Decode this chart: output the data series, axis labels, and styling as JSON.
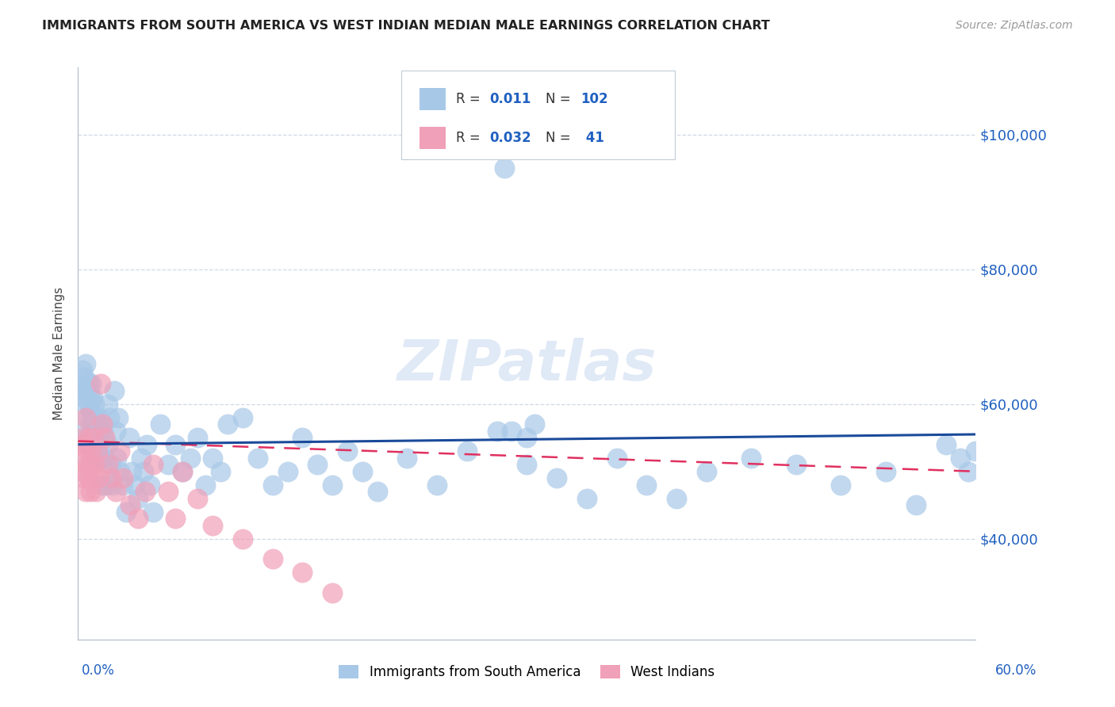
{
  "title": "IMMIGRANTS FROM SOUTH AMERICA VS WEST INDIAN MEDIAN MALE EARNINGS CORRELATION CHART",
  "source": "Source: ZipAtlas.com",
  "ylabel": "Median Male Earnings",
  "color_blue": "#a8c8e8",
  "color_pink": "#f0a0b8",
  "color_blue_line": "#1a4a9a",
  "color_pink_line": "#e03060",
  "color_blue_text": "#2060c0",
  "ytick_labels": [
    "$40,000",
    "$60,000",
    "$80,000",
    "$100,000"
  ],
  "ytick_vals": [
    40000,
    60000,
    80000,
    100000
  ],
  "xlim": [
    0.0,
    0.6
  ],
  "ylim": [
    25000,
    110000
  ],
  "grid_color": "#d0d8e8",
  "spine_color": "#b0b8c8",
  "legend_box_color": "#e8eef8",
  "legend_box_edge": "#c0ccd8",
  "sa_x": [
    0.002,
    0.003,
    0.003,
    0.004,
    0.004,
    0.005,
    0.005,
    0.005,
    0.006,
    0.006,
    0.006,
    0.007,
    0.007,
    0.007,
    0.008,
    0.008,
    0.008,
    0.009,
    0.009,
    0.01,
    0.01,
    0.01,
    0.011,
    0.011,
    0.012,
    0.012,
    0.013,
    0.013,
    0.014,
    0.014,
    0.015,
    0.015,
    0.016,
    0.016,
    0.017,
    0.018,
    0.019,
    0.02,
    0.02,
    0.021,
    0.022,
    0.023,
    0.024,
    0.025,
    0.026,
    0.027,
    0.028,
    0.03,
    0.032,
    0.034,
    0.036,
    0.038,
    0.04,
    0.042,
    0.044,
    0.046,
    0.048,
    0.05,
    0.055,
    0.06,
    0.065,
    0.07,
    0.075,
    0.08,
    0.085,
    0.09,
    0.095,
    0.1,
    0.11,
    0.12,
    0.13,
    0.14,
    0.15,
    0.16,
    0.17,
    0.18,
    0.19,
    0.2,
    0.22,
    0.24,
    0.26,
    0.28,
    0.3,
    0.32,
    0.34,
    0.36,
    0.38,
    0.4,
    0.42,
    0.45,
    0.48,
    0.51,
    0.54,
    0.56,
    0.58,
    0.59,
    0.595,
    0.6,
    0.285,
    0.29,
    0.3,
    0.305
  ],
  "sa_y": [
    63000,
    62000,
    65000,
    61000,
    64000,
    56000,
    60000,
    66000,
    62000,
    58000,
    55000,
    54000,
    60000,
    63000,
    57000,
    59000,
    61000,
    56000,
    63000,
    58000,
    54000,
    61000,
    60000,
    56000,
    52000,
    58000,
    55000,
    57000,
    58000,
    54000,
    52000,
    56000,
    52000,
    48000,
    56000,
    52000,
    48000,
    60000,
    54000,
    58000,
    51000,
    48000,
    62000,
    56000,
    52000,
    58000,
    50000,
    48000,
    44000,
    55000,
    50000,
    48000,
    46000,
    52000,
    50000,
    54000,
    48000,
    44000,
    57000,
    51000,
    54000,
    50000,
    52000,
    55000,
    48000,
    52000,
    50000,
    57000,
    58000,
    52000,
    48000,
    50000,
    55000,
    51000,
    48000,
    53000,
    50000,
    47000,
    52000,
    48000,
    53000,
    56000,
    51000,
    49000,
    46000,
    52000,
    48000,
    46000,
    50000,
    52000,
    51000,
    48000,
    50000,
    45000,
    54000,
    52000,
    50000,
    53000,
    95000,
    56000,
    55000,
    57000
  ],
  "wi_x": [
    0.002,
    0.003,
    0.003,
    0.004,
    0.004,
    0.005,
    0.005,
    0.006,
    0.006,
    0.007,
    0.007,
    0.008,
    0.008,
    0.009,
    0.01,
    0.01,
    0.011,
    0.012,
    0.013,
    0.014,
    0.015,
    0.016,
    0.018,
    0.02,
    0.022,
    0.025,
    0.028,
    0.03,
    0.035,
    0.04,
    0.045,
    0.05,
    0.06,
    0.065,
    0.07,
    0.08,
    0.09,
    0.11,
    0.13,
    0.15,
    0.17
  ],
  "wi_y": [
    52000,
    50000,
    55000,
    49000,
    54000,
    47000,
    58000,
    51000,
    53000,
    49000,
    55000,
    51000,
    47000,
    53000,
    49000,
    55000,
    51000,
    47000,
    53000,
    49000,
    63000,
    57000,
    55000,
    51000,
    49000,
    47000,
    53000,
    49000,
    45000,
    43000,
    47000,
    51000,
    47000,
    43000,
    50000,
    46000,
    42000,
    40000,
    37000,
    35000,
    32000
  ],
  "trend_sa_x0": 0.0,
  "trend_sa_x1": 0.6,
  "trend_sa_y0": 54000,
  "trend_sa_y1": 55500,
  "trend_wi_x0": 0.0,
  "trend_wi_x1": 0.6,
  "trend_wi_y0": 54500,
  "trend_wi_y1": 50000
}
